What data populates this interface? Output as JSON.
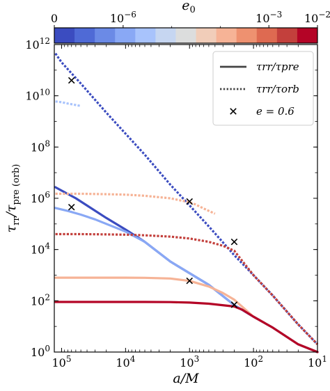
{
  "chart_data": {
    "type": "line",
    "title": "",
    "xlabel": "a/M",
    "ylabel": "τrr/τpre (orb)",
    "x_scale": "log",
    "y_scale": "log",
    "x_reversed": true,
    "xlim": [
      130000,
      10
    ],
    "ylim": [
      1,
      1000000000000
    ],
    "grid": false,
    "x_ticks": [
      {
        "value": 100000,
        "label": "10^5"
      },
      {
        "value": 10000,
        "label": "10^4"
      },
      {
        "value": 1000,
        "label": "10^3"
      },
      {
        "value": 100,
        "label": "10^2"
      },
      {
        "value": 10,
        "label": "10^1"
      }
    ],
    "y_ticks": [
      {
        "value": 1,
        "label": "10^0"
      },
      {
        "value": 100,
        "label": "10^2"
      },
      {
        "value": 10000,
        "label": "10^4"
      },
      {
        "value": 1000000,
        "label": "10^6"
      },
      {
        "value": 100000000,
        "label": "10^8"
      },
      {
        "value": 10000000000,
        "label": "10^10"
      },
      {
        "value": 1000000000000,
        "label": "10^12"
      }
    ],
    "colorbar": {
      "label": "e0",
      "scale": "log",
      "position": "top",
      "ticks": [
        {
          "value": "0",
          "label": "0"
        },
        {
          "value": 1e-06,
          "label": "10^-6"
        },
        {
          "value": 0.001,
          "label": "10^-3"
        },
        {
          "value": 0.01,
          "label": "10^-2"
        }
      ],
      "segment_colors": [
        "#3b4cc0",
        "#4f6ad6",
        "#6b8ae6",
        "#89a8f5",
        "#a8c3fc",
        "#c6d6f1",
        "#dcdddd",
        "#f1cdb9",
        "#f6b396",
        "#ee9170",
        "#de6a51",
        "#c3403c",
        "#b40426"
      ]
    },
    "legend": {
      "placement": "top-right",
      "entries": [
        {
          "label": "τrr/τpre",
          "style": "solid"
        },
        {
          "label": "τrr/τorb",
          "style": "dotted"
        },
        {
          "label": "e = 0.6",
          "style": "x-marker"
        }
      ]
    },
    "series": [
      {
        "style": "solid",
        "color": "#3b4cc0",
        "x": [
          125000,
          60000,
          20000,
          10000,
          5000,
          2000,
          1000,
          500,
          200,
          100,
          50,
          20,
          10
        ],
        "y": [
          2700000,
          1000000,
          170000,
          60000,
          20000,
          3400,
          1200,
          420,
          68,
          24,
          9,
          2,
          1
        ]
      },
      {
        "style": "solid",
        "color": "#89a8f5",
        "x": [
          125000,
          80000,
          50000,
          30000,
          20000,
          10000,
          5000,
          2000,
          1000,
          500,
          200,
          100,
          50,
          20,
          10
        ],
        "y": [
          420000,
          320000,
          230000,
          150000,
          100000,
          50000,
          20000,
          3400,
          1200,
          420,
          68,
          24,
          9,
          2,
          1
        ]
      },
      {
        "style": "solid",
        "color": "#f6b396",
        "x": [
          125000,
          50000,
          10000,
          5000,
          2000,
          1000,
          500,
          300,
          200,
          100,
          50,
          20,
          10
        ],
        "y": [
          800,
          800,
          800,
          790,
          740,
          600,
          360,
          200,
          110,
          24,
          9,
          2,
          1
        ]
      },
      {
        "style": "solid",
        "color": "#b40426",
        "x": [
          125000,
          50000,
          10000,
          5000,
          2000,
          1000,
          500,
          200,
          150,
          100,
          50,
          20,
          10
        ],
        "y": [
          90,
          90,
          90,
          90,
          89,
          85,
          77,
          60,
          45,
          24,
          9,
          2,
          1
        ]
      },
      {
        "style": "dotted",
        "color": "#3b4cc0",
        "x": [
          125000,
          100000,
          50000,
          20000,
          10000,
          5000,
          2000,
          1000,
          500,
          200,
          100,
          50,
          20,
          10
        ],
        "y": [
          450000000000,
          200000000000,
          30000000000,
          2200000000,
          330000000,
          50000000,
          3400000,
          530000,
          80000,
          6000,
          1000,
          160,
          12,
          2
        ]
      },
      {
        "style": "dotted",
        "color": "#a8c3fc",
        "x": [
          125000,
          100000,
          80000,
          50000
        ],
        "y": [
          6000000000,
          5600000000,
          5000000000,
          4000000000
        ]
      },
      {
        "style": "dotted",
        "color": "#f6b396",
        "x": [
          125000,
          50000,
          20000,
          10000,
          5000,
          2000,
          1000,
          800,
          600,
          400
        ],
        "y": [
          1500000,
          1500000,
          1450000,
          1380000,
          1250000,
          1000000,
          700000,
          570000,
          400000,
          250000
        ]
      },
      {
        "style": "dotted",
        "color": "#c3403c",
        "x": [
          125000,
          50000,
          20000,
          10000,
          5000,
          2000,
          1000,
          500,
          300,
          200,
          100,
          50,
          20,
          10
        ],
        "y": [
          40000,
          40000,
          39000,
          38000,
          36000,
          32000,
          27000,
          20000,
          14000,
          9000,
          1000,
          160,
          12,
          2
        ]
      }
    ],
    "markers": [
      {
        "x": 70000,
        "y": 40000000000,
        "symbol": "x"
      },
      {
        "x": 70000,
        "y": 450000,
        "symbol": "x"
      },
      {
        "x": 1000,
        "y": 750000,
        "symbol": "x"
      },
      {
        "x": 1000,
        "y": 600,
        "symbol": "x"
      },
      {
        "x": 200,
        "y": 20000,
        "symbol": "x"
      },
      {
        "x": 200,
        "y": 70,
        "symbol": "x"
      }
    ]
  }
}
